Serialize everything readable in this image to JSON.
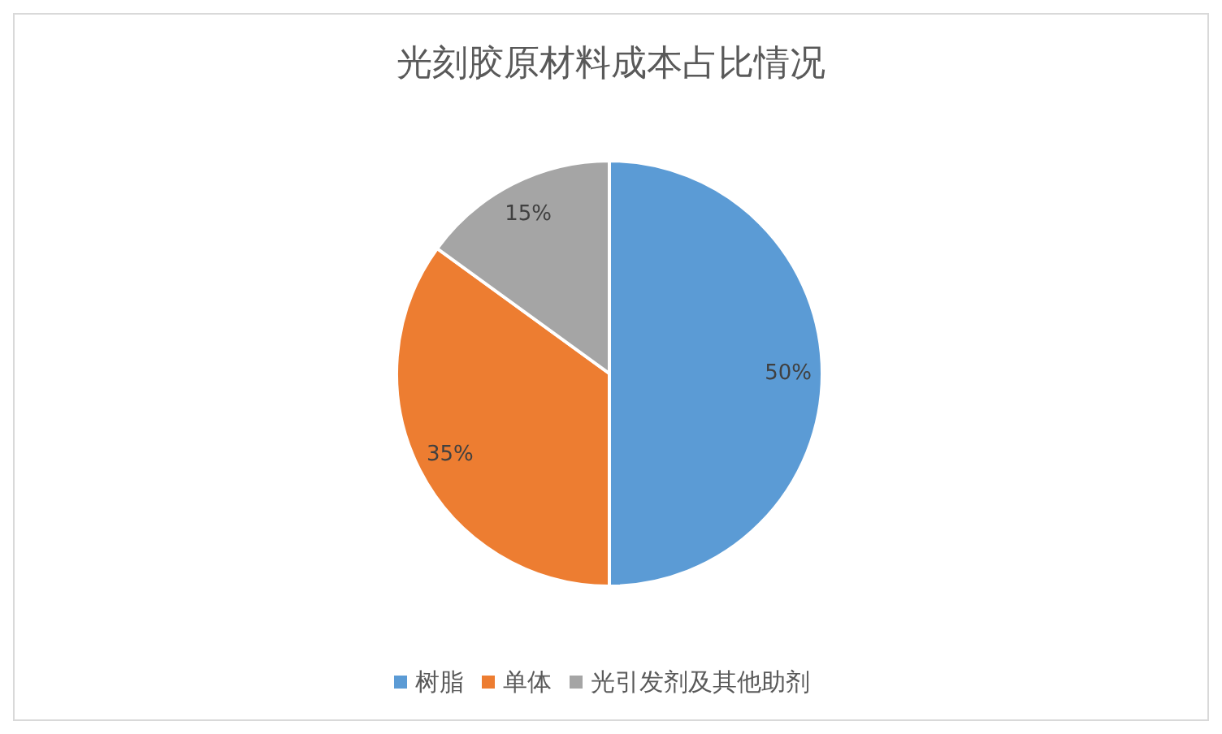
{
  "chart_data": {
    "type": "pie",
    "title": "光刻胶原材料成本占比情况",
    "categories": [
      "树脂",
      "单体",
      "光引发剂及其他助剂"
    ],
    "values": [
      50,
      35,
      15
    ],
    "colors": [
      "#5b9bd5",
      "#ed7d31",
      "#a5a5a5"
    ],
    "value_labels": [
      "50%",
      "35%",
      "15%"
    ],
    "legend": "bottom"
  }
}
